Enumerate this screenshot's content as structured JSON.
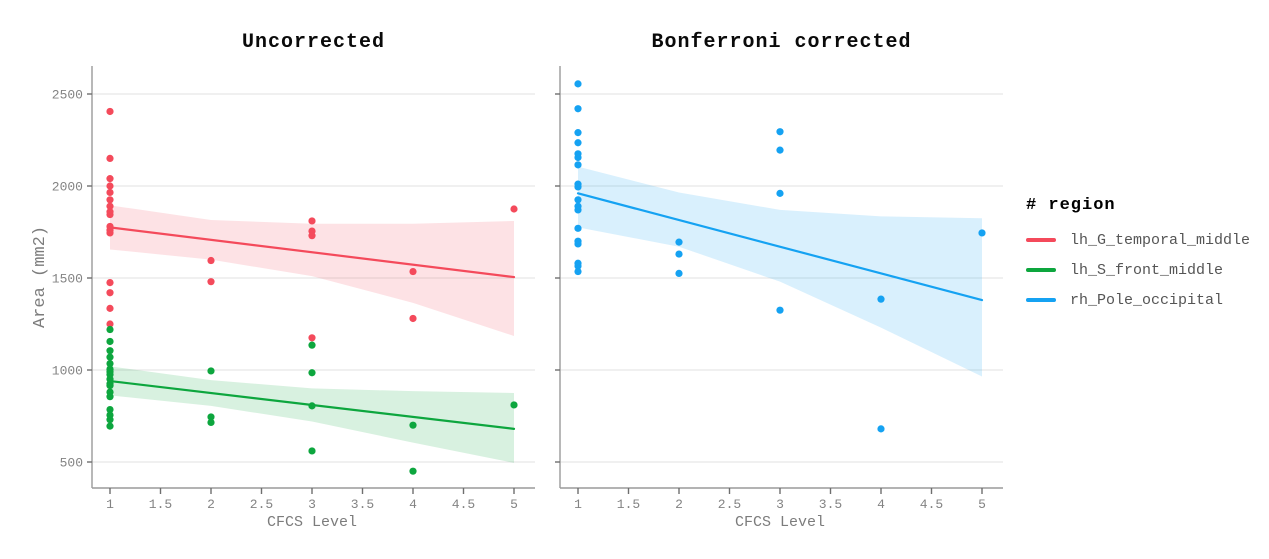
{
  "figure": {
    "background": "#ffffff"
  },
  "colors": {
    "red": "#F44A5B",
    "green": "#0DA63E",
    "blue": "#15A2F2",
    "grid": "#e2e2e2",
    "axis": "#9a9a9a",
    "tick_text": "#838383",
    "legend_label": "#555555",
    "band_opacity": 0.16
  },
  "legend": {
    "title": "# region",
    "entries": [
      {
        "label": "lh_G_temporal_middle",
        "color_key": "red"
      },
      {
        "label": "lh_S_front_middle",
        "color_key": "green"
      },
      {
        "label": "rh_Pole_occipital",
        "color_key": "blue"
      }
    ]
  },
  "chart_data": [
    {
      "type": "scatter",
      "title": "Uncorrected",
      "xlabel": "CFCS Level",
      "ylabel": "Area (mm2)",
      "x_ticks": [
        1,
        1.5,
        2,
        2.5,
        3,
        3.5,
        4,
        4.5,
        5
      ],
      "y_ticks": [
        500,
        1000,
        1500,
        2000,
        2500
      ],
      "xlim": [
        0.82,
        5.2
      ],
      "ylim": [
        360,
        2660
      ],
      "grid": true,
      "legend_position": "right",
      "series": [
        {
          "name": "lh_G_temporal_middle",
          "color_key": "red",
          "points": [
            [
              1,
              2405
            ],
            [
              1,
              2150
            ],
            [
              1,
              2040
            ],
            [
              1,
              2000
            ],
            [
              1,
              1965
            ],
            [
              1,
              1925
            ],
            [
              1,
              1890
            ],
            [
              1,
              1860
            ],
            [
              1,
              1845
            ],
            [
              1,
              1780
            ],
            [
              1,
              1760
            ],
            [
              1,
              1745
            ],
            [
              1,
              1475
            ],
            [
              1,
              1420
            ],
            [
              1,
              1335
            ],
            [
              1,
              1250
            ],
            [
              2,
              1595
            ],
            [
              2,
              1480
            ],
            [
              3,
              1810
            ],
            [
              3,
              1755
            ],
            [
              3,
              1730
            ],
            [
              3,
              1175
            ],
            [
              4,
              1535
            ],
            [
              4,
              1280
            ],
            [
              5,
              1875
            ]
          ],
          "trend": [
            [
              1,
              1775
            ],
            [
              5,
              1505
            ]
          ],
          "band": [
            [
              1,
              1655,
              1895
            ],
            [
              2,
              1600,
              1815
            ],
            [
              3,
              1510,
              1795
            ],
            [
              4,
              1365,
              1795
            ],
            [
              5,
              1185,
              1810
            ]
          ]
        },
        {
          "name": "lh_S_front_middle",
          "color_key": "green",
          "points": [
            [
              1,
              1220
            ],
            [
              1,
              1155
            ],
            [
              1,
              1105
            ],
            [
              1,
              1070
            ],
            [
              1,
              1035
            ],
            [
              1,
              1005
            ],
            [
              1,
              990
            ],
            [
              1,
              975
            ],
            [
              1,
              950
            ],
            [
              1,
              925
            ],
            [
              1,
              915
            ],
            [
              1,
              880
            ],
            [
              1,
              855
            ],
            [
              1,
              785
            ],
            [
              1,
              755
            ],
            [
              1,
              730
            ],
            [
              1,
              695
            ],
            [
              2,
              995
            ],
            [
              2,
              745
            ],
            [
              2,
              715
            ],
            [
              3,
              1135
            ],
            [
              3,
              985
            ],
            [
              3,
              805
            ],
            [
              3,
              560
            ],
            [
              4,
              700
            ],
            [
              4,
              450
            ],
            [
              5,
              810
            ]
          ],
          "trend": [
            [
              1,
              940
            ],
            [
              5,
              680
            ]
          ],
          "band": [
            [
              1,
              862,
              1020
            ],
            [
              2,
              805,
              945
            ],
            [
              3,
              720,
              900
            ],
            [
              4,
              605,
              885
            ],
            [
              5,
              495,
              875
            ]
          ]
        }
      ]
    },
    {
      "type": "scatter",
      "title": "Bonferroni corrected",
      "xlabel": "CFCS Level",
      "ylabel": "",
      "x_ticks": [
        1,
        1.5,
        2,
        2.5,
        3,
        3.5,
        4,
        4.5,
        5
      ],
      "y_ticks": [
        500,
        1000,
        1500,
        2000,
        2500
      ],
      "xlim": [
        0.82,
        5.2
      ],
      "ylim": [
        360,
        2660
      ],
      "grid": true,
      "legend_position": "right",
      "series": [
        {
          "name": "rh_Pole_occipital",
          "color_key": "blue",
          "points": [
            [
              1,
              2555
            ],
            [
              1,
              2420
            ],
            [
              1,
              2290
            ],
            [
              1,
              2235
            ],
            [
              1,
              2175
            ],
            [
              1,
              2155
            ],
            [
              1,
              2115
            ],
            [
              1,
              2010
            ],
            [
              1,
              1995
            ],
            [
              1,
              1925
            ],
            [
              1,
              1890
            ],
            [
              1,
              1870
            ],
            [
              1,
              1770
            ],
            [
              1,
              1700
            ],
            [
              1,
              1685
            ],
            [
              1,
              1580
            ],
            [
              1,
              1565
            ],
            [
              1,
              1535
            ],
            [
              2,
              1695
            ],
            [
              2,
              1630
            ],
            [
              2,
              1525
            ],
            [
              3,
              2295
            ],
            [
              3,
              2195
            ],
            [
              3,
              1960
            ],
            [
              3,
              1325
            ],
            [
              4,
              1385
            ],
            [
              4,
              680
            ],
            [
              5,
              1745
            ]
          ],
          "trend": [
            [
              1,
              1960
            ],
            [
              5,
              1380
            ]
          ],
          "band": [
            [
              1,
              1775,
              2105
            ],
            [
              2,
              1670,
              1965
            ],
            [
              3,
              1480,
              1870
            ],
            [
              4,
              1230,
              1835
            ],
            [
              5,
              965,
              1825
            ]
          ]
        }
      ]
    }
  ]
}
